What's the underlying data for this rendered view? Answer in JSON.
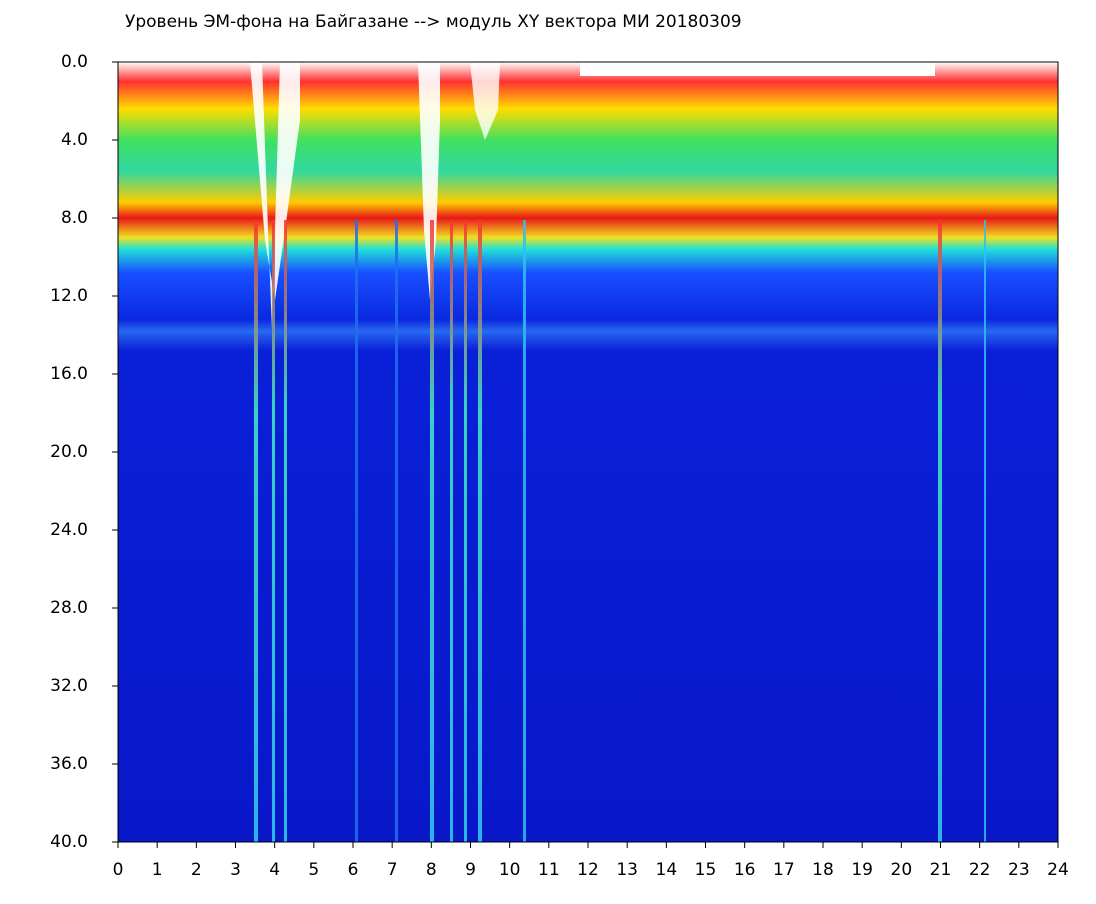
{
  "chart_data": {
    "type": "heatmap",
    "title": "Уровень ЭМ-фона на Байгазане  -->  модуль XY вектора МИ  20180309",
    "xlim": [
      0,
      24
    ],
    "xticks": [
      0,
      1,
      2,
      3,
      4,
      5,
      6,
      7,
      8,
      9,
      10,
      11,
      12,
      13,
      14,
      15,
      16,
      17,
      18,
      19,
      20,
      21,
      22,
      23,
      24
    ],
    "ylim": [
      0,
      40
    ],
    "y_inverted": true,
    "yticks": [
      {
        "value": 0,
        "label": "0.0"
      },
      {
        "value": 4,
        "label": "4.0"
      },
      {
        "value": 8,
        "label": "8.0"
      },
      {
        "value": 12,
        "label": "12.0"
      },
      {
        "value": 16,
        "label": "16.0"
      },
      {
        "value": 20,
        "label": "20.0"
      },
      {
        "value": 24,
        "label": "24.0"
      },
      {
        "value": 28,
        "label": "28.0"
      },
      {
        "value": 32,
        "label": "32.0"
      },
      {
        "value": 36,
        "label": "36.0"
      },
      {
        "value": 40,
        "label": "40.0"
      }
    ]
  }
}
